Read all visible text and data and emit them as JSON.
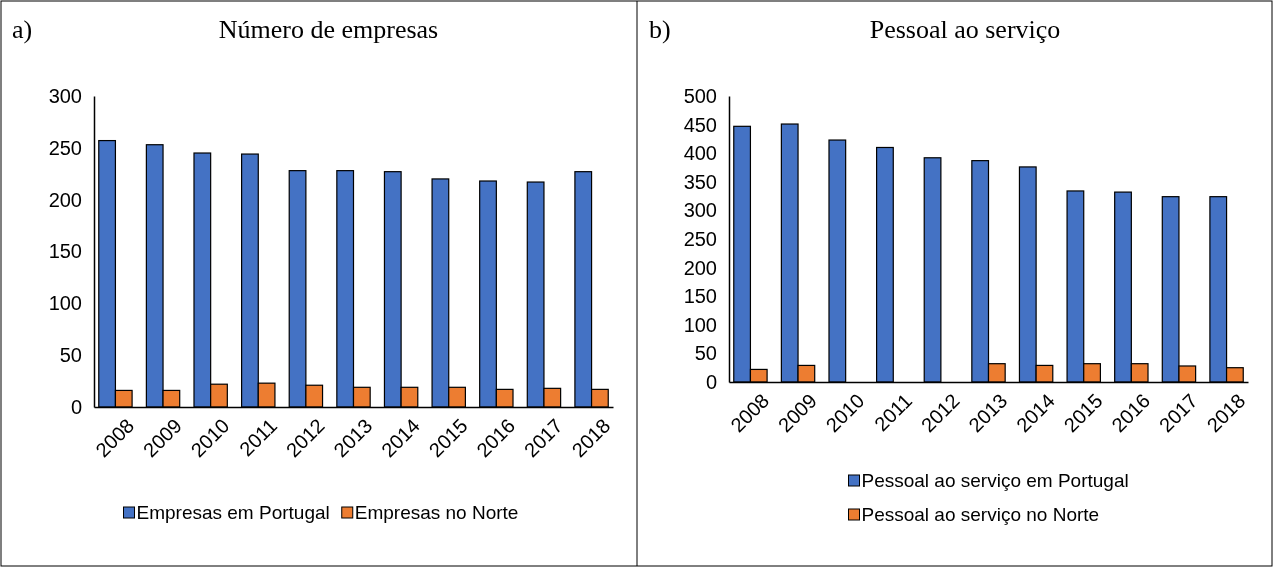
{
  "chart_data": [
    {
      "type": "bar",
      "title": "Número de empresas",
      "annotations": [
        "a)"
      ],
      "categories": [
        "2008",
        "2009",
        "2010",
        "2011",
        "2012",
        "2013",
        "2014",
        "2015",
        "2016",
        "2017",
        "2018"
      ],
      "series": [
        {
          "name": "Empresas em Portugal",
          "color": "#4472c4",
          "values": [
            257,
            253,
            245,
            244,
            228,
            228,
            227,
            220,
            218,
            217,
            227
          ]
        },
        {
          "name": "Empresas no Norte",
          "color": "#ed7d31",
          "values": [
            16,
            16,
            22,
            23,
            21,
            19,
            19,
            19,
            17,
            18,
            17
          ]
        }
      ],
      "ylim": [
        0,
        300
      ],
      "yticks": [
        0,
        50,
        100,
        150,
        200,
        250,
        300
      ],
      "grid": false,
      "legend": "bottom"
    },
    {
      "type": "bar",
      "title": "Pessoal ao serviço",
      "annotations": [
        "b)"
      ],
      "categories": [
        "2008",
        "2009",
        "2010",
        "2011",
        "2012",
        "2013",
        "2014",
        "2015",
        "2016",
        "2017",
        "2018"
      ],
      "series": [
        {
          "name": "Pessoal ao serviço em Portugal",
          "color": "#4472c4",
          "values": [
            447,
            451,
            423,
            410,
            392,
            387,
            376,
            334,
            332,
            324,
            324
          ]
        },
        {
          "name": "Pessoal ao serviço no Norte",
          "color": "#ed7d31",
          "values": [
            22,
            29,
            null,
            null,
            null,
            32,
            29,
            32,
            32,
            28,
            25
          ]
        }
      ],
      "ylim": [
        0,
        500
      ],
      "yticks": [
        0,
        50,
        100,
        150,
        200,
        250,
        300,
        350,
        400,
        450,
        500
      ],
      "grid": false,
      "legend": "bottom"
    }
  ]
}
